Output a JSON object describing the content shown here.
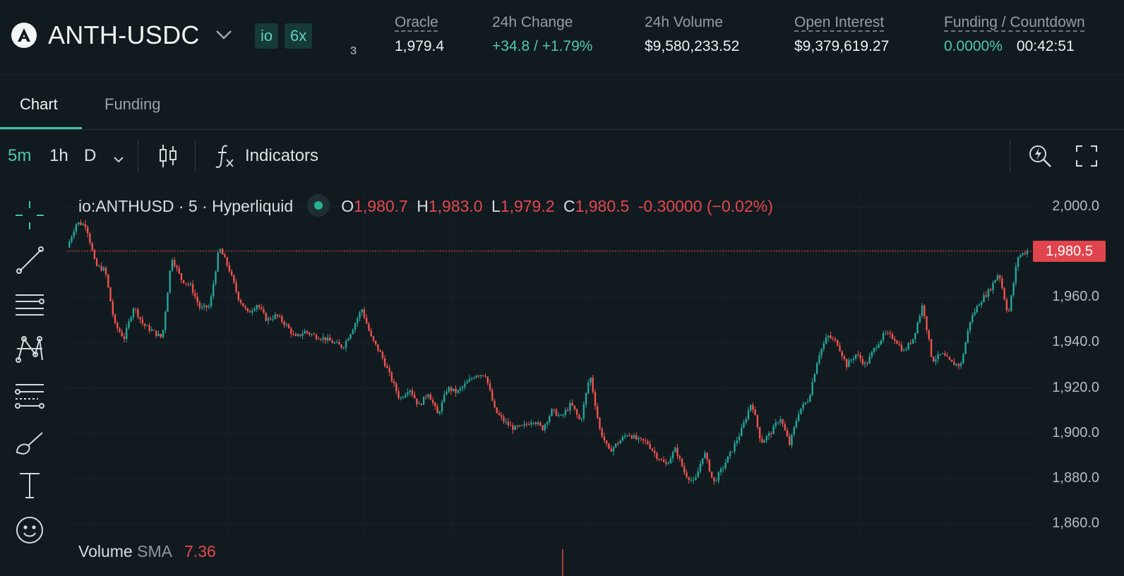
{
  "header": {
    "pair": "ANTH-USDC",
    "tags": [
      "io",
      "6x"
    ],
    "clipped_text": "ɜ",
    "stats": [
      {
        "label": "Oracle",
        "value": "1,979.4",
        "underlined": true
      },
      {
        "label": "24h Change",
        "value": "+34.8 / +1.79%",
        "underlined": false,
        "color": "#4ec9a7"
      },
      {
        "label": "24h Volume",
        "value": "$9,580,233.52",
        "underlined": false
      },
      {
        "label": "Open Interest",
        "value": "$9,379,619.27",
        "underlined": true
      }
    ],
    "funding": {
      "label": "Funding / Countdown",
      "rate": "0.0000%",
      "countdown": "00:42:51"
    }
  },
  "tabs": [
    {
      "label": "Chart",
      "active": true
    },
    {
      "label": "Funding",
      "active": false
    }
  ],
  "toolbar": {
    "intervals": [
      {
        "label": "5m",
        "active": true
      },
      {
        "label": "1h",
        "active": false
      },
      {
        "label": "D",
        "active": false
      }
    ],
    "indicators_label": "Indicators"
  },
  "drawing_tools": [
    "crosshair-icon",
    "trend-line-icon",
    "horizontal-lines-icon",
    "pattern-icon",
    "fib-icon",
    "brush-icon",
    "text-icon",
    "emoji-icon"
  ],
  "legend": {
    "symbol": "io:ANTHUSD · 5 · Hyperliquid",
    "o_label": "O",
    "o": "1,980.7",
    "h_label": "H",
    "h": "1,983.0",
    "l_label": "L",
    "l": "1,979.2",
    "c_label": "C",
    "c": "1,980.5",
    "change": "-0.30000 (−0.02%)"
  },
  "volume": {
    "label": "Volume",
    "sma_label": "SMA",
    "value": "7.36"
  },
  "colors": {
    "up": "#26a69a",
    "down": "#ef5350",
    "accent": "#4ec9a7",
    "background": "#111a1f"
  },
  "chart_data": {
    "type": "line",
    "title": "",
    "ylim": [
      1860,
      2000
    ],
    "y_ticks": [
      "2,000.0",
      "1,980.0",
      "1,960.0",
      "1,940.0",
      "1,920.0",
      "1,900.0",
      "1,880.0",
      "1,860.0"
    ],
    "y_tick_values": [
      2000,
      1980,
      1960,
      1940,
      1920,
      1900,
      1880,
      1860
    ],
    "last_price": 1980.5,
    "last_price_label": "1,980.5",
    "series": [
      {
        "values": [
          1982,
          1993,
          1992,
          1974,
          1972,
          1948,
          1942,
          1956,
          1948,
          1945,
          1942,
          1978,
          1968,
          1965,
          1955,
          1956,
          1982,
          1973,
          1960,
          1953,
          1957,
          1950,
          1952,
          1948,
          1942,
          1945,
          1943,
          1942,
          1940,
          1938,
          1946,
          1955,
          1942,
          1935,
          1925,
          1915,
          1920,
          1912,
          1918,
          1908,
          1920,
          1918,
          1922,
          1926,
          1926,
          1910,
          1905,
          1902,
          1903,
          1906,
          1902,
          1910,
          1907,
          1913,
          1905,
          1926,
          1902,
          1892,
          1896,
          1900,
          1897,
          1896,
          1890,
          1886,
          1893,
          1882,
          1878,
          1892,
          1878,
          1885,
          1893,
          1902,
          1914,
          1896,
          1900,
          1907,
          1895,
          1910,
          1915,
          1934,
          1943,
          1940,
          1930,
          1935,
          1930,
          1938,
          1944,
          1942,
          1936,
          1942,
          1957,
          1932,
          1935,
          1931,
          1930,
          1950,
          1958,
          1963,
          1971,
          1952,
          1978,
          1980.5
        ]
      }
    ]
  }
}
